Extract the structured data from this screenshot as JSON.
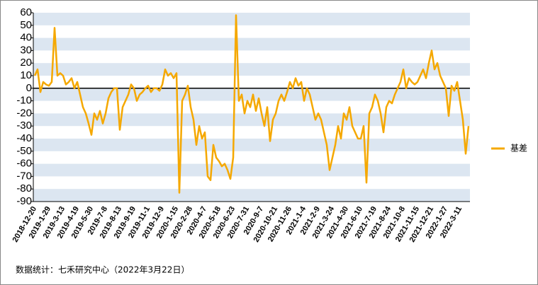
{
  "chart_data": {
    "type": "line",
    "note": "数据统计：七禾研究中心（2022年3月22日）",
    "categories": [
      "2018-12-20",
      null,
      null,
      null,
      null,
      "2019-1-29",
      null,
      null,
      null,
      null,
      "2019-3-13",
      null,
      null,
      null,
      null,
      "2019-4-19",
      null,
      null,
      null,
      null,
      "2019-5-30",
      null,
      null,
      null,
      null,
      "2019-7-8",
      null,
      null,
      null,
      null,
      "2019-8-13",
      null,
      null,
      null,
      null,
      "2019-9-19",
      null,
      null,
      null,
      null,
      "2019-11-1",
      null,
      null,
      null,
      null,
      "2019-12-9",
      null,
      null,
      null,
      null,
      "2020-1-15",
      null,
      null,
      null,
      null,
      "2020-2-28",
      null,
      null,
      null,
      null,
      "2020-4-7",
      null,
      null,
      null,
      null,
      "2020-5-18",
      null,
      null,
      null,
      null,
      "2020-6-23",
      null,
      null,
      null,
      null,
      "2020-7-31",
      null,
      null,
      null,
      null,
      "2020-9-7",
      null,
      null,
      null,
      null,
      "2020-10-21",
      null,
      null,
      null,
      null,
      "2020-11-26",
      null,
      null,
      null,
      null,
      "2021-1-4",
      null,
      null,
      null,
      null,
      "2021-2-9",
      null,
      null,
      null,
      null,
      "2021-3-24",
      null,
      null,
      null,
      null,
      "2021-4-30",
      null,
      null,
      null,
      null,
      "2021-6-10",
      null,
      null,
      null,
      null,
      "2021-7-19",
      null,
      null,
      null,
      null,
      "2021-8-24",
      null,
      null,
      null,
      null,
      "2021-10-8",
      null,
      null,
      null,
      null,
      "2021-11-15",
      null,
      null,
      null,
      null,
      "2021-12-21",
      null,
      null,
      null,
      null,
      "2022-1-27",
      null,
      null,
      null,
      null,
      "2022-3-11",
      null,
      null,
      null
    ],
    "series": [
      {
        "name": "基差",
        "color": "#f5a800",
        "values": [
          10,
          15,
          -3,
          5,
          3,
          2,
          5,
          48,
          10,
          12,
          10,
          3,
          5,
          8,
          0,
          5,
          -5,
          -15,
          -20,
          -28,
          -37,
          -20,
          -25,
          -18,
          -28,
          -20,
          -8,
          -3,
          0,
          0,
          -33,
          -15,
          -10,
          -5,
          3,
          0,
          -10,
          -5,
          -3,
          0,
          2,
          -3,
          0,
          0,
          -2,
          3,
          15,
          10,
          12,
          8,
          12,
          -83,
          -10,
          -5,
          2,
          -15,
          -25,
          -45,
          -30,
          -40,
          -35,
          -70,
          -73,
          -45,
          -55,
          -58,
          -62,
          -60,
          -65,
          -72,
          -55,
          58,
          -10,
          -5,
          -20,
          -10,
          -15,
          -5,
          -18,
          -8,
          -20,
          -30,
          -15,
          -42,
          -25,
          -20,
          -10,
          -5,
          -10,
          -3,
          5,
          0,
          8,
          2,
          5,
          -10,
          0,
          -5,
          -15,
          -25,
          -20,
          -25,
          -35,
          -45,
          -65,
          -55,
          -45,
          -30,
          -40,
          -20,
          -25,
          -15,
          -30,
          -35,
          -40,
          -40,
          -30,
          -75,
          -20,
          -15,
          -5,
          -10,
          -20,
          -35,
          -15,
          -10,
          -12,
          -5,
          0,
          5,
          15,
          0,
          8,
          5,
          3,
          5,
          10,
          15,
          8,
          20,
          30,
          15,
          20,
          10,
          5,
          0,
          -22,
          2,
          -2,
          5,
          -10,
          -25,
          -52,
          -30
        ]
      }
    ],
    "ylim": [
      -90,
      60
    ],
    "yticks": [
      -90,
      -80,
      -70,
      -60,
      -50,
      -40,
      -30,
      -20,
      -10,
      0,
      10,
      20,
      30,
      40,
      50,
      60
    ],
    "grid": true,
    "legend": "right"
  }
}
